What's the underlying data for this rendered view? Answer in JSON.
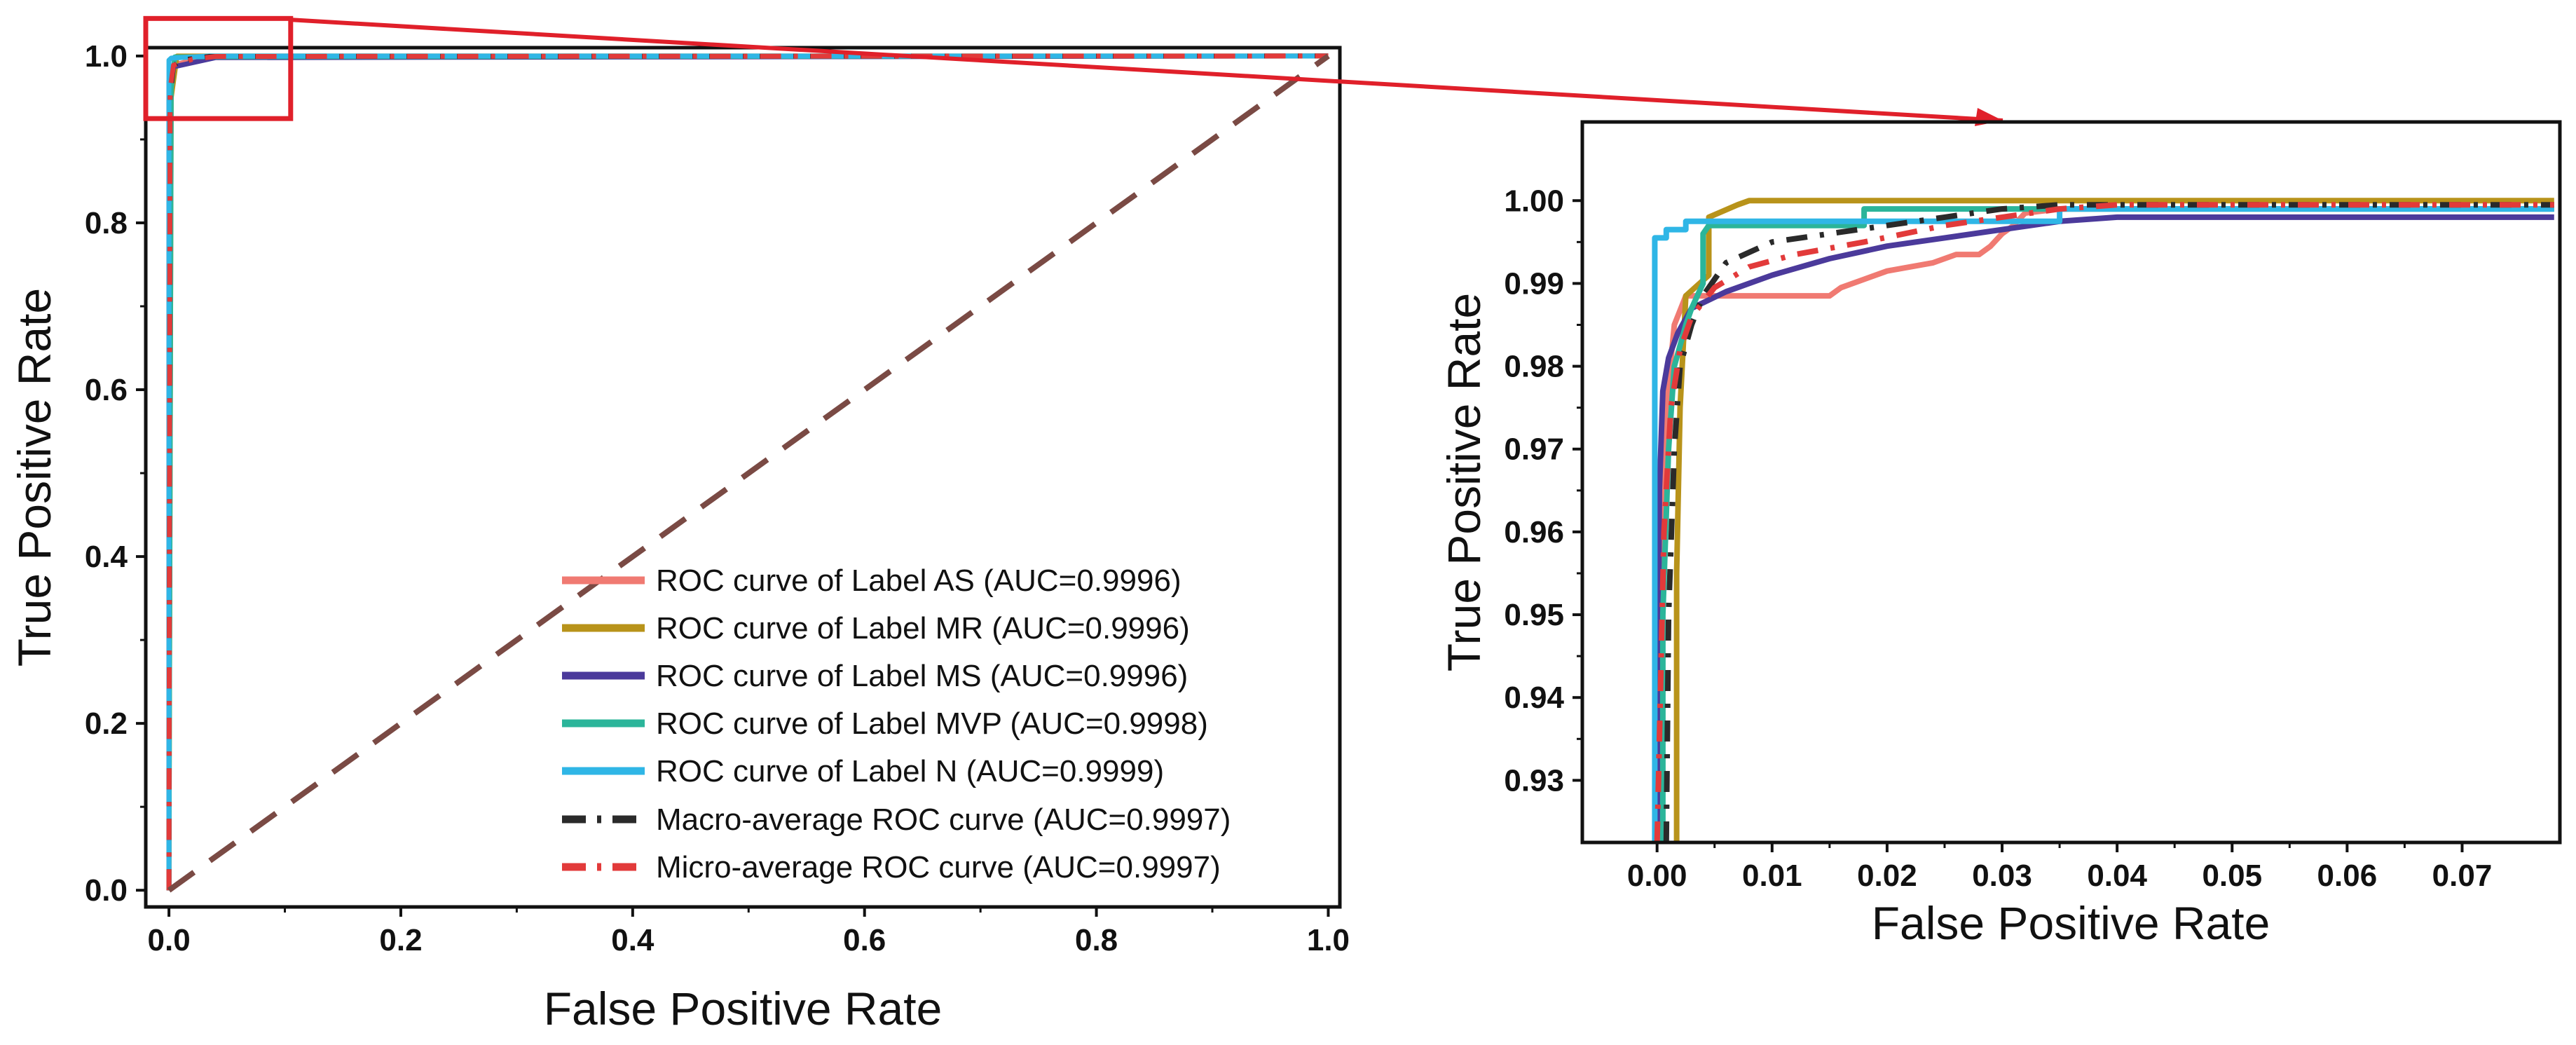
{
  "chart_data": [
    {
      "type": "line",
      "panel": "full-view",
      "xlabel": "False Positive Rate",
      "ylabel": "True Positive Rate",
      "xlim": [
        -0.02,
        1.01
      ],
      "ylim": [
        -0.02,
        1.01
      ],
      "xticks": [
        0.0,
        0.2,
        0.4,
        0.6,
        0.8,
        1.0
      ],
      "yticks": [
        0.0,
        0.2,
        0.4,
        0.6,
        0.8,
        1.0
      ],
      "xtick_labels": [
        "0.0",
        "0.2",
        "0.4",
        "0.6",
        "0.8",
        "1.0"
      ],
      "ytick_labels": [
        "0.0",
        "0.2",
        "0.4",
        "0.6",
        "0.8",
        "1.0"
      ],
      "legend_position": "bottom-right",
      "series": [
        {
          "name": "ROC curve of Label AS (AUC=0.9996)",
          "color": "#f07a72",
          "style": "solid",
          "x": [
            0,
            0,
            0.004,
            0.03,
            1
          ],
          "y": [
            0,
            0.95,
            0.989,
            0.999,
            1
          ]
        },
        {
          "name": "ROC curve of Label MR (AUC=0.9996)",
          "color": "#b8931a",
          "style": "solid",
          "x": [
            0,
            0.002,
            0.007,
            1
          ],
          "y": [
            0,
            0.95,
            1.0,
            1
          ]
        },
        {
          "name": "ROC curve of Label MS (AUC=0.9996)",
          "color": "#4b3a9b",
          "style": "solid",
          "x": [
            0,
            0,
            0.004,
            0.04,
            1
          ],
          "y": [
            0,
            0.97,
            0.987,
            0.998,
            1
          ]
        },
        {
          "name": "ROC curve of Label MVP (AUC=0.9998)",
          "color": "#2bb59a",
          "style": "solid",
          "x": [
            0,
            0.002,
            0.005,
            1
          ],
          "y": [
            0,
            0.96,
            0.999,
            1
          ]
        },
        {
          "name": "ROC curve of Label N (AUC=0.9999)",
          "color": "#2fb6e6",
          "style": "solid",
          "x": [
            0,
            0,
            0.002,
            0.035,
            1
          ],
          "y": [
            0,
            0.995,
            0.9975,
            1.0,
            1
          ]
        },
        {
          "name": "Macro-average ROC curve (AUC=0.9997)",
          "color": "#2a2a2a",
          "style": "dashdot",
          "x": [
            0,
            0.001,
            0.004,
            0.01,
            0.035,
            1
          ],
          "y": [
            0,
            0.95,
            0.988,
            0.995,
            0.9995,
            1
          ]
        },
        {
          "name": "Micro-average ROC curve (AUC=0.9997)",
          "color": "#e23a3a",
          "style": "dashdot",
          "x": [
            0,
            0.001,
            0.004,
            0.02,
            0.04,
            1
          ],
          "y": [
            0,
            0.96,
            0.989,
            0.996,
            0.9995,
            1
          ]
        },
        {
          "name": "chance",
          "color": "#7a4a44",
          "style": "dashed",
          "x": [
            0,
            1
          ],
          "y": [
            0,
            1
          ],
          "in_legend": false
        }
      ],
      "zoom_box": {
        "x": [
          -0.02,
          0.105
        ],
        "y": [
          0.925,
          1.045
        ]
      }
    },
    {
      "type": "line",
      "panel": "zoomed-inset",
      "xlabel": "False Positive Rate",
      "ylabel": "True Positive Rate",
      "xlim": [
        -0.0065,
        0.0785
      ],
      "ylim": [
        0.9225,
        1.0095
      ],
      "xticks": [
        0.0,
        0.01,
        0.02,
        0.03,
        0.04,
        0.05,
        0.06,
        0.07
      ],
      "yticks": [
        0.93,
        0.94,
        0.95,
        0.96,
        0.97,
        0.98,
        0.99,
        1.0
      ],
      "xtick_labels": [
        "0.00",
        "0.01",
        "0.02",
        "0.03",
        "0.04",
        "0.05",
        "0.06",
        "0.07"
      ],
      "ytick_labels": [
        "0.93",
        "0.94",
        "0.95",
        "0.96",
        "0.97",
        "0.98",
        "0.99",
        "1.00"
      ],
      "series": [
        {
          "name": "AS",
          "color": "#f07a72",
          "style": "solid",
          "x": [
            0.0,
            0.0003,
            0.0008,
            0.0015,
            0.0025,
            0.005,
            0.015,
            0.016,
            0.018,
            0.02,
            0.022,
            0.024,
            0.026,
            0.028,
            0.029,
            0.03,
            0.031,
            0.032,
            0.035,
            0.078
          ],
          "y": [
            0.9225,
            0.955,
            0.975,
            0.985,
            0.9885,
            0.9885,
            0.9885,
            0.9895,
            0.9905,
            0.9915,
            0.992,
            0.9925,
            0.9935,
            0.9935,
            0.9945,
            0.996,
            0.997,
            0.9985,
            0.999,
            0.999
          ]
        },
        {
          "name": "MR",
          "color": "#b8931a",
          "style": "solid",
          "x": [
            0.0017,
            0.0017,
            0.002,
            0.0025,
            0.0045,
            0.0045,
            0.007,
            0.008,
            0.078
          ],
          "y": [
            0.9225,
            0.955,
            0.975,
            0.9885,
            0.991,
            0.998,
            0.9995,
            1.0,
            1.0
          ]
        },
        {
          "name": "MS",
          "color": "#4b3a9b",
          "style": "solid",
          "x": [
            0.0,
            0.0002,
            0.0005,
            0.001,
            0.0018,
            0.003,
            0.006,
            0.01,
            0.015,
            0.02,
            0.025,
            0.03,
            0.035,
            0.04,
            0.078
          ],
          "y": [
            0.9225,
            0.965,
            0.977,
            0.981,
            0.984,
            0.987,
            0.989,
            0.991,
            0.993,
            0.9945,
            0.9955,
            0.9965,
            0.9975,
            0.998,
            0.998
          ]
        },
        {
          "name": "MVP",
          "color": "#2bb59a",
          "style": "solid",
          "x": [
            0.0005,
            0.0005,
            0.001,
            0.0015,
            0.0025,
            0.003,
            0.004,
            0.004,
            0.0045,
            0.018,
            0.018,
            0.078
          ],
          "y": [
            0.9225,
            0.95,
            0.97,
            0.98,
            0.985,
            0.987,
            0.99,
            0.996,
            0.997,
            0.997,
            0.999,
            0.999
          ]
        },
        {
          "name": "N",
          "color": "#2fb6e6",
          "style": "solid",
          "x": [
            -0.0002,
            -0.0002,
            0.0008,
            0.0008,
            0.0025,
            0.0025,
            0.035,
            0.035,
            0.078
          ],
          "y": [
            0.9225,
            0.9955,
            0.9955,
            0.9965,
            0.9965,
            0.9975,
            0.9975,
            0.999,
            0.999
          ]
        },
        {
          "name": "Macro",
          "color": "#2a2a2a",
          "style": "dashdot",
          "x": [
            0.0008,
            0.001,
            0.0015,
            0.002,
            0.003,
            0.004,
            0.006,
            0.01,
            0.015,
            0.02,
            0.025,
            0.03,
            0.035,
            0.04,
            0.078
          ],
          "y": [
            0.9225,
            0.95,
            0.97,
            0.98,
            0.985,
            0.9885,
            0.9925,
            0.995,
            0.996,
            0.997,
            0.998,
            0.999,
            0.9995,
            0.9995,
            0.9995
          ]
        },
        {
          "name": "Micro",
          "color": "#e23a3a",
          "style": "dashdot",
          "x": [
            0.0,
            0.0002,
            0.0006,
            0.0012,
            0.002,
            0.003,
            0.005,
            0.008,
            0.012,
            0.018,
            0.025,
            0.03,
            0.035,
            0.04,
            0.078
          ],
          "y": [
            0.9225,
            0.935,
            0.96,
            0.975,
            0.982,
            0.986,
            0.9895,
            0.992,
            0.9935,
            0.995,
            0.997,
            0.998,
            0.999,
            0.9995,
            0.9995
          ]
        }
      ]
    }
  ],
  "legend": {
    "entries": [
      {
        "label": "ROC curve of Label AS (AUC=0.9996)",
        "color": "#f07a72",
        "style": "solid"
      },
      {
        "label": "ROC curve of Label MR (AUC=0.9996)",
        "color": "#b8931a",
        "style": "solid"
      },
      {
        "label": "ROC curve of Label MS (AUC=0.9996)",
        "color": "#4b3a9b",
        "style": "solid"
      },
      {
        "label": "ROC curve of Label MVP (AUC=0.9998)",
        "color": "#2bb59a",
        "style": "solid"
      },
      {
        "label": "ROC curve of Label N (AUC=0.9999)",
        "color": "#2fb6e6",
        "style": "solid"
      },
      {
        "label": "Macro-average ROC curve (AUC=0.9997)",
        "color": "#2a2a2a",
        "style": "dashdot"
      },
      {
        "label": "Micro-average ROC curve (AUC=0.9997)",
        "color": "#e23a3a",
        "style": "dashdot"
      }
    ]
  },
  "colors": {
    "zoom_indicator": "#e0202a",
    "axis": "#111111",
    "background": "#ffffff"
  }
}
